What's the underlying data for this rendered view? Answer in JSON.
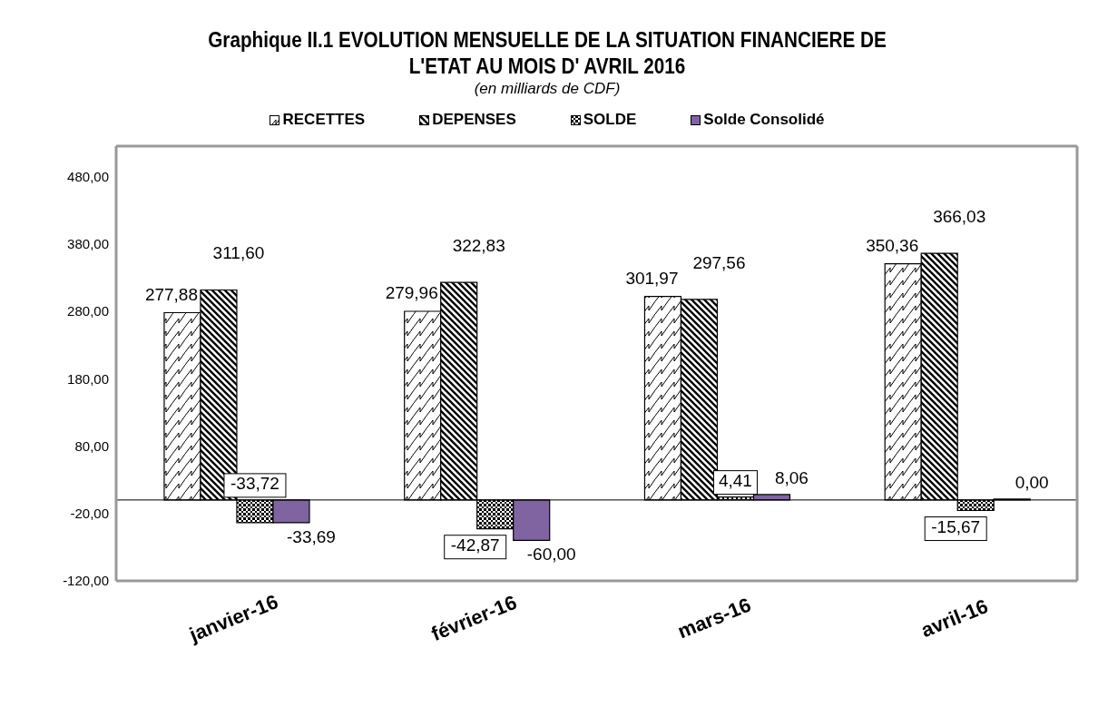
{
  "chart_data": {
    "type": "bar",
    "title": "Graphique II.1  EVOLUTION MENSUELLE DE LA SITUATION FINANCIERE DE L'ETAT AU MOIS D' AVRIL  2016",
    "subtitle": "(en milliards de CDF)",
    "categories": [
      "janvier-16",
      "février-16",
      "mars-16",
      "avril-16"
    ],
    "series": [
      {
        "name": "RECETTES",
        "color": "#000000",
        "values": [
          277.88,
          279.96,
          301.97,
          350.36
        ],
        "value_labels": [
          "277,88",
          "279,96",
          "301,97",
          "350,36"
        ]
      },
      {
        "name": "DEPENSES",
        "color": "#000000",
        "values": [
          311.6,
          322.83,
          297.56,
          366.03
        ],
        "value_labels": [
          "311,60",
          "322,83",
          "297,56",
          "366,03"
        ]
      },
      {
        "name": "SOLDE",
        "color": "#000000",
        "values": [
          -33.72,
          -42.87,
          4.41,
          -15.67
        ],
        "value_labels": [
          "-33,72",
          "-42,87",
          "4,41",
          "-15,67"
        ]
      },
      {
        "name": "Solde Consolidé",
        "color": "#8064a2",
        "values": [
          -33.69,
          -60.0,
          8.06,
          0.0
        ],
        "value_labels": [
          "-33,69",
          "-60,00",
          "8,06",
          "0,00"
        ]
      }
    ],
    "ylim": [
      -120,
      525
    ],
    "yticks": [
      {
        "value": -120,
        "label": "-120,00"
      },
      {
        "value": -20,
        "label": "-20,00"
      },
      {
        "value": 80,
        "label": "80,00"
      },
      {
        "value": 180,
        "label": "180,00"
      },
      {
        "value": 280,
        "label": "280,00"
      },
      {
        "value": 380,
        "label": "380,00"
      },
      {
        "value": 480,
        "label": "480,00"
      }
    ],
    "ref_lines": [
      {
        "axis": "y",
        "value": 0,
        "color": "#000000"
      }
    ],
    "grid": false,
    "legend": "top"
  }
}
